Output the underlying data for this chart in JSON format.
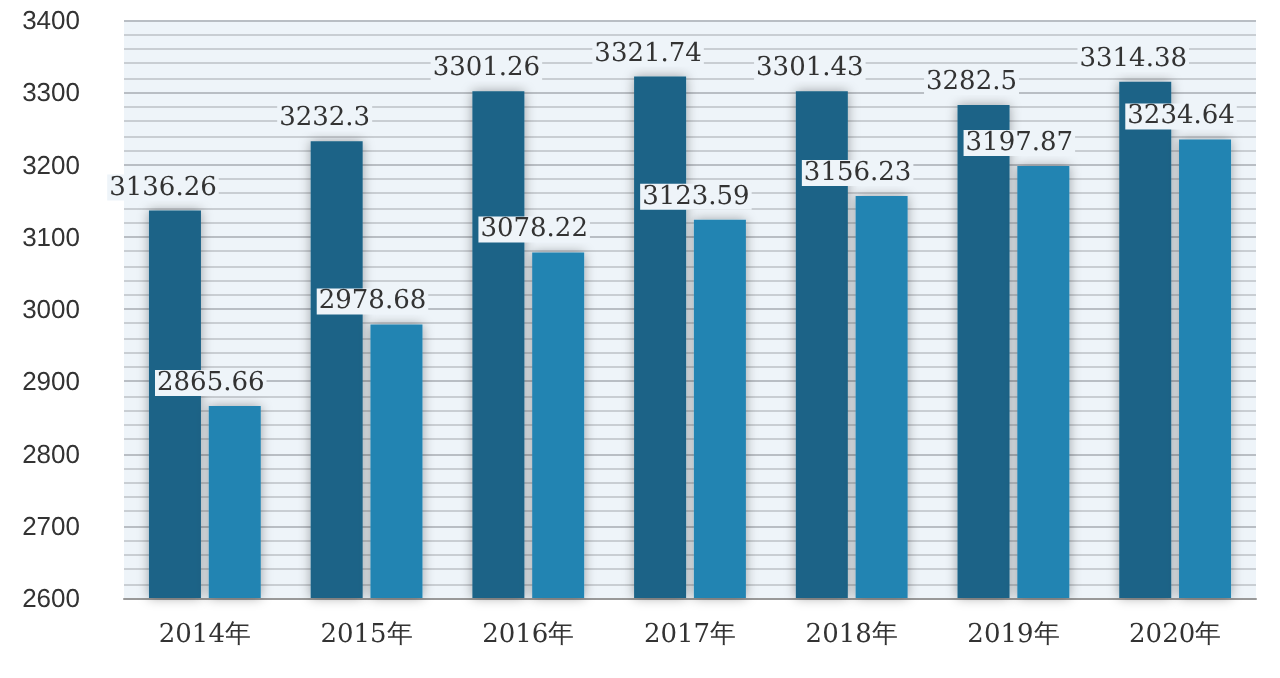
{
  "chart_data": {
    "type": "bar",
    "categories": [
      "2014年",
      "2015年",
      "2016年",
      "2017年",
      "2018年",
      "2019年",
      "2020年"
    ],
    "series": [
      {
        "color": "#1b6387",
        "values": [
          3136.26,
          3232.3,
          3301.26,
          3321.74,
          3301.43,
          3282.5,
          3314.38
        ]
      },
      {
        "color": "#2484b2",
        "values": [
          2865.66,
          2978.68,
          3078.22,
          3123.59,
          3156.23,
          3197.87,
          3234.64
        ]
      }
    ],
    "ylim": [
      2600,
      3400
    ],
    "yticks": [
      2600,
      2700,
      2800,
      2900,
      3000,
      3100,
      3200,
      3300,
      3400
    ],
    "grid": "y",
    "data_labels": true
  }
}
